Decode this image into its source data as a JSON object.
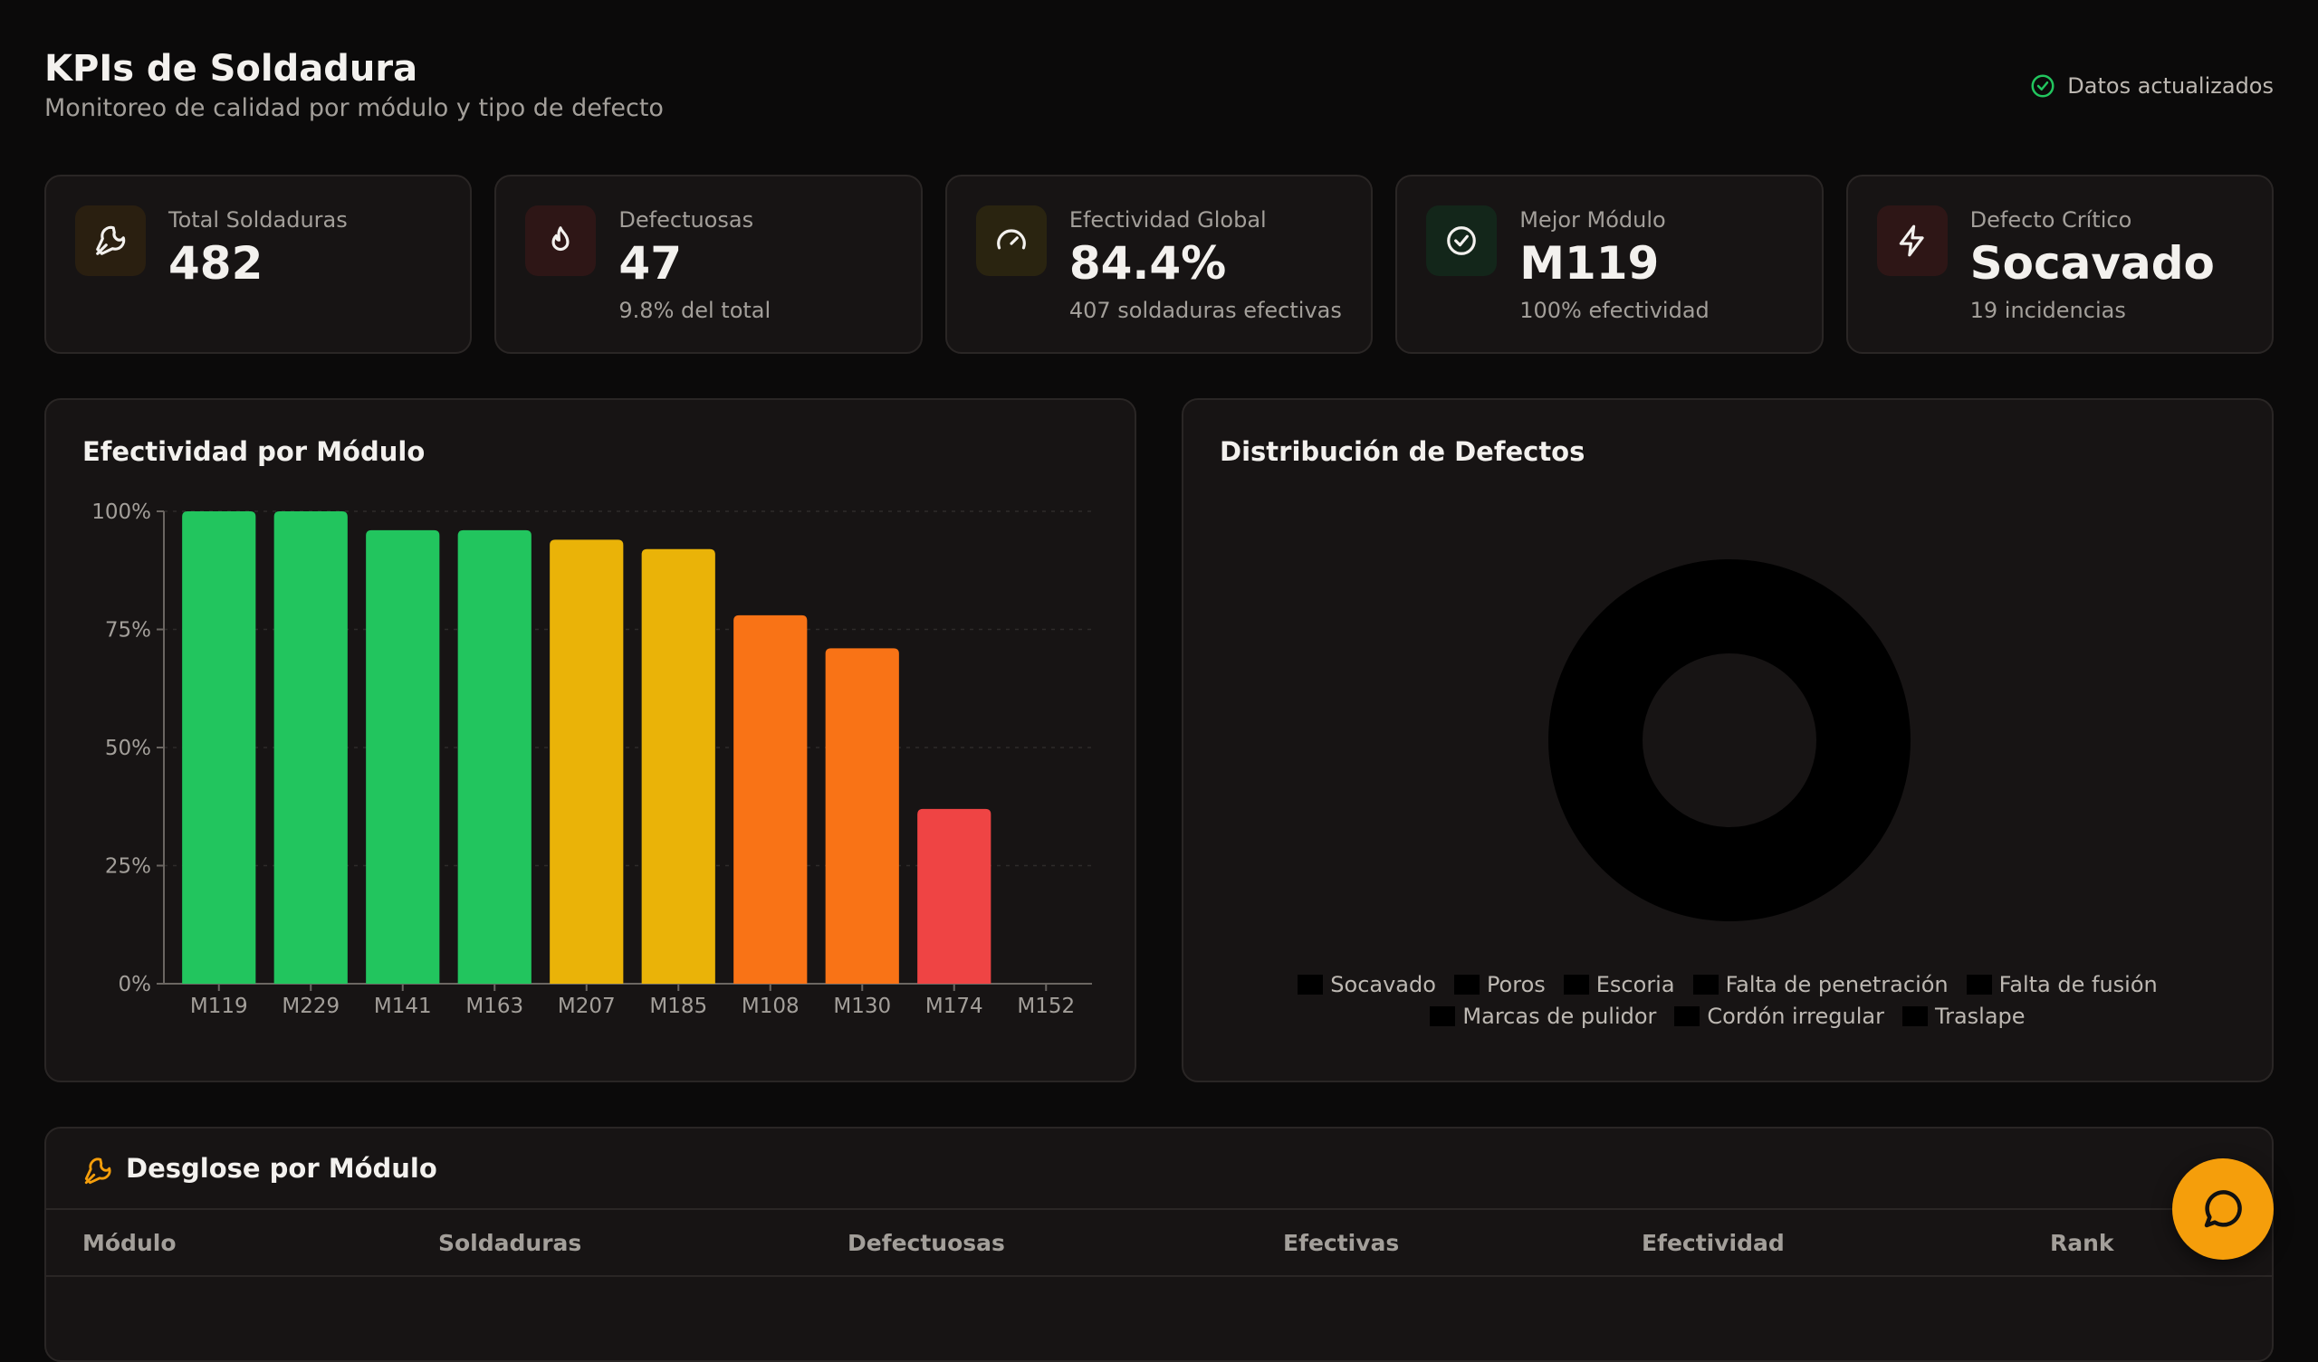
{
  "header": {
    "title": "KPIs de Soldadura",
    "subtitle": "Monitoreo de calidad por módulo y tipo de defecto",
    "status": "Datos actualizados",
    "status_color": "#22c55e"
  },
  "kpis": [
    {
      "label": "Total Soldaduras",
      "value": "482",
      "sub": "",
      "icon": "wrench-icon",
      "color": "#f59e0b"
    },
    {
      "label": "Defectuosas",
      "value": "47",
      "sub": "9.8% del total",
      "icon": "flame-icon",
      "color": "#ef4444"
    },
    {
      "label": "Efectividad Global",
      "value": "84.4%",
      "sub": "407 soldaduras efectivas",
      "icon": "gauge-icon",
      "color": "#eab308"
    },
    {
      "label": "Mejor Módulo",
      "value": "M119",
      "sub": "100% efectividad",
      "icon": "check-circle-icon",
      "color": "#22c55e"
    },
    {
      "label": "Defecto Crítico",
      "value": "Socavado",
      "sub": "19 incidencias",
      "icon": "bolt-icon",
      "color": "#ef4444"
    }
  ],
  "bar_panel": {
    "title": "Efectividad por Módulo"
  },
  "pie_panel": {
    "title": "Distribución de Defectos",
    "legend": [
      "Socavado",
      "Poros",
      "Escoria",
      "Falta de penetración",
      "Falta de fusión",
      "Marcas de pulidor",
      "Cordón irregular",
      "Traslape"
    ]
  },
  "chart_data": {
    "type": "bar",
    "categories": [
      "M119",
      "M229",
      "M141",
      "M163",
      "M207",
      "M185",
      "M108",
      "M130",
      "M174",
      "M152"
    ],
    "values": [
      100,
      100,
      96,
      96,
      94,
      92,
      78,
      71,
      37,
      0
    ],
    "colors": [
      "#22c55e",
      "#22c55e",
      "#22c55e",
      "#22c55e",
      "#eab308",
      "#eab308",
      "#f97316",
      "#f97316",
      "#ef4444",
      "#ef4444"
    ],
    "yticks": [
      "0%",
      "25%",
      "50%",
      "75%",
      "100%"
    ],
    "ylim": [
      0,
      100
    ]
  },
  "table": {
    "title": "Desglose por Módulo",
    "columns": [
      "Módulo",
      "Soldaduras",
      "Defectuosas",
      "Efectivas",
      "Efectividad",
      "Rank"
    ]
  },
  "fab": {
    "icon": "chat-icon",
    "color": "#f59e0b"
  }
}
